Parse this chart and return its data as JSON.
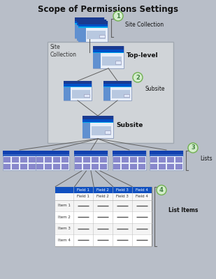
{
  "title": "Scope of Permissions Settings",
  "title_fontsize": 8.5,
  "bg_color": "#b8bec8",
  "label1": "Site Collection",
  "label2": "Subsite",
  "label3": "Lists",
  "label4": "List Items",
  "top_level_label": "Top-level",
  "subsite_label": "Subsite",
  "site_collection_text": "Site\nCollection",
  "circle_color": "#d4edcc",
  "circle_edge": "#70b050",
  "line_color": "#606060",
  "sp_icon_blue_dark": "#1a3a90",
  "sp_icon_blue_top": "#0050c8",
  "sp_icon_blue_mid": "#3a6abf",
  "sp_icon_blue_light": "#6090d0",
  "sp_icon_cyan": "#00aaee",
  "sp_icon_gray": "#b8c8e0",
  "sp_icon_bg": "#e8eef8",
  "list_icon_blue_top": "#1040b0",
  "list_icon_blue2": "#3060c0",
  "list_icon_purple": "#8888cc",
  "list_table_header": "#1050c0",
  "list_table_bg": "#ffffff",
  "box_bg": "#d0d4d8",
  "box_edge": "#a0a8b0"
}
